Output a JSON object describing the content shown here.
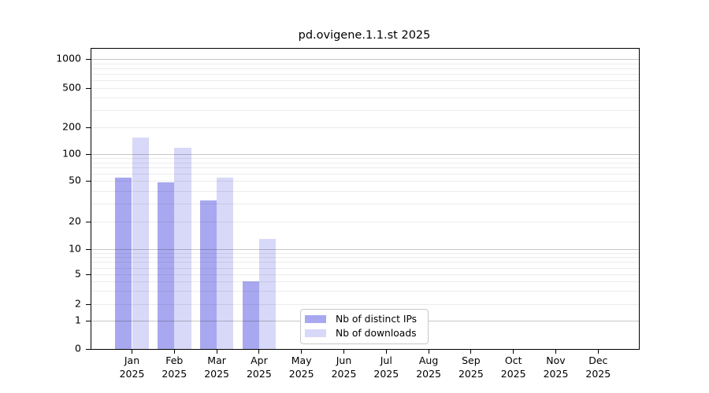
{
  "chart": {
    "title": "pd.ovigene.1.1.st 2025",
    "chart_data": {
      "type": "bar",
      "categories": [
        "Jan 2025",
        "Feb 2025",
        "Mar 2025",
        "Apr 2025",
        "May 2025",
        "Jun 2025",
        "Jul 2025",
        "Aug 2025",
        "Sep 2025",
        "Oct 2025",
        "Nov 2025",
        "Dec 2025"
      ],
      "series": [
        {
          "name": "Nb of distinct IPs",
          "color": "#a8a8f0",
          "values": [
            54,
            48,
            32,
            4,
            0,
            0,
            0,
            0,
            0,
            0,
            0,
            0
          ]
        },
        {
          "name": "Nb of downloads",
          "color": "#d8d8f8",
          "values": [
            155,
            118,
            54,
            13,
            0,
            0,
            0,
            0,
            0,
            0,
            0,
            0
          ]
        }
      ],
      "yticks": [
        0,
        1,
        2,
        5,
        10,
        20,
        50,
        100,
        200,
        500,
        1000
      ],
      "ylabel": "",
      "xlabel": "",
      "yscale": "log above 1, linear between 0 and 1",
      "ylim": [
        0,
        1500
      ],
      "grid": "horizontal major (1,10,100,1000) + minor log lines, drawn over bars",
      "legend_position": "inside bottom-center",
      "bar_grouping": "two bars per month, side by side, no gap within pair"
    }
  }
}
